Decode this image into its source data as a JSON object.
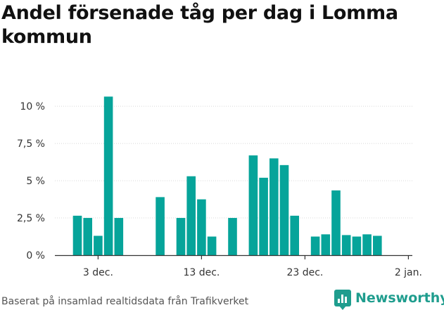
{
  "title": "Andel försenade tåg per dag i Lomma kommun",
  "source": "Baserat på insamlad realtidsdata från Trafikverket",
  "brand": {
    "name": "Newsworthy",
    "icon": "newsworthy-logo-icon",
    "color": "#1f9d8e"
  },
  "chart_data": {
    "type": "bar",
    "title": "Andel försenade tåg per dag i Lomma kommun",
    "xlabel": "",
    "ylabel": "",
    "x": [
      "2023-12-01",
      "2023-12-02",
      "2023-12-03",
      "2023-12-04",
      "2023-12-05",
      "2023-12-06",
      "2023-12-07",
      "2023-12-08",
      "2023-12-09",
      "2023-12-10",
      "2023-12-11",
      "2023-12-12",
      "2023-12-13",
      "2023-12-14",
      "2023-12-15",
      "2023-12-16",
      "2023-12-17",
      "2023-12-18",
      "2023-12-19",
      "2023-12-20",
      "2023-12-21",
      "2023-12-22",
      "2023-12-23",
      "2023-12-24",
      "2023-12-25",
      "2023-12-26",
      "2023-12-27",
      "2023-12-28",
      "2023-12-29",
      "2023-12-30",
      "2023-12-31"
    ],
    "values": [
      2.65,
      2.5,
      1.3,
      10.65,
      2.5,
      null,
      null,
      null,
      3.9,
      null,
      2.5,
      5.3,
      3.75,
      1.25,
      null,
      2.5,
      null,
      6.7,
      5.2,
      6.5,
      6.05,
      2.65,
      null,
      1.25,
      1.4,
      4.35,
      1.35,
      1.25,
      1.4,
      1.3,
      null
    ],
    "ylim": [
      0,
      11
    ],
    "yticks": [
      0,
      2.5,
      5,
      7.5,
      10
    ],
    "ytick_labels": [
      "0 %",
      "2,5 %",
      "5 %",
      "7,5 %",
      "10 %"
    ],
    "xticks": [
      "2023-12-03",
      "2023-12-13",
      "2023-12-23",
      "2024-01-02"
    ],
    "xtick_labels": [
      "3 dec.",
      "13 dec.",
      "23 dec.",
      "2 jan."
    ],
    "color": "#06a49a",
    "grid": true
  }
}
